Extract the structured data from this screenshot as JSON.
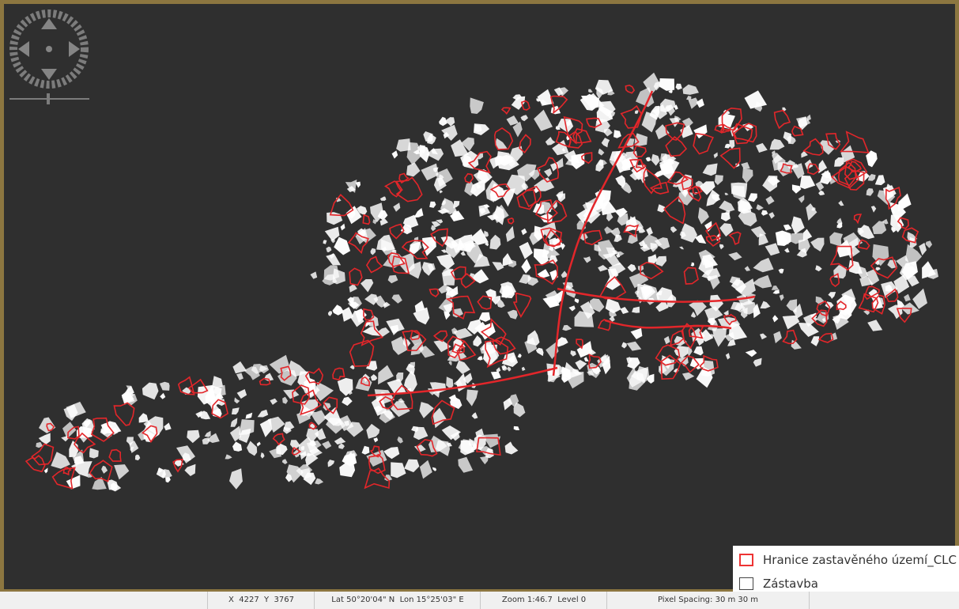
{
  "legend": {
    "items": [
      {
        "label": "Hranice zastavěného území_CLC"
      },
      {
        "label": "Zástavba"
      }
    ]
  },
  "status_bar": {
    "coordinates": "X  4227  Y  3767",
    "lat_lon": "Lat 50°20'04\" N  Lon 15°25'03\" E",
    "zoom": "Zoom 1:46.7  Level 0",
    "pixel_spacing": "Pixel Spacing: 30 m 30 m"
  }
}
